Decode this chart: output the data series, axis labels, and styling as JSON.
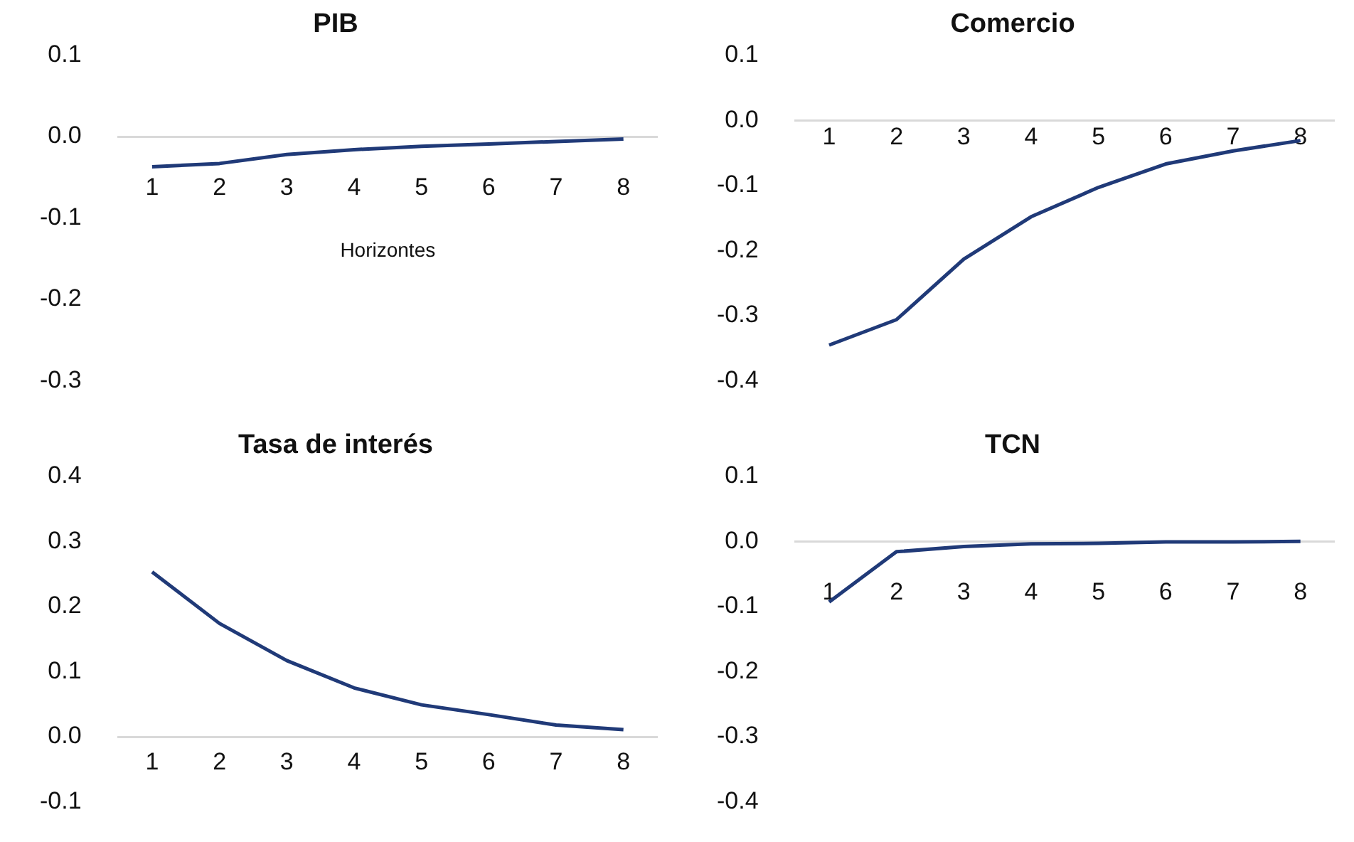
{
  "chart_data": [
    {
      "type": "line",
      "title": "PIB",
      "xlabel": "Horizontes",
      "categories": [
        "1",
        "2",
        "3",
        "4",
        "5",
        "6",
        "7",
        "8"
      ],
      "series": [
        {
          "color": "#203a78",
          "values": [
            -0.037,
            -0.033,
            -0.022,
            -0.016,
            -0.012,
            -0.009,
            -0.006,
            -0.003
          ]
        }
      ],
      "ylim": [
        -0.3,
        0.1
      ],
      "yticks": [
        {
          "value": -0.3,
          "label": "-0.3"
        },
        {
          "value": -0.2,
          "label": "-0.2"
        },
        {
          "value": -0.1,
          "label": "-0.1"
        },
        {
          "value": 0,
          "label": "0.0"
        },
        {
          "value": 0.1,
          "label": "0.1"
        }
      ]
    },
    {
      "type": "line",
      "title": "Comercio",
      "categories": [
        "1",
        "2",
        "3",
        "4",
        "5",
        "6",
        "7",
        "8"
      ],
      "series": [
        {
          "color": "#203a78",
          "values": [
            -0.345,
            -0.306,
            -0.213,
            -0.148,
            -0.103,
            -0.067,
            -0.047,
            -0.031
          ]
        }
      ],
      "ylim": [
        -0.4,
        0.1
      ],
      "yticks": [
        {
          "value": -0.4,
          "label": "-0.4"
        },
        {
          "value": -0.3,
          "label": "-0.3"
        },
        {
          "value": -0.2,
          "label": "-0.2"
        },
        {
          "value": -0.1,
          "label": "-0.1"
        },
        {
          "value": 0,
          "label": "0.0"
        },
        {
          "value": 0.1,
          "label": "0.1"
        }
      ]
    },
    {
      "type": "line",
      "title": "Tasa de interés",
      "categories": [
        "1",
        "2",
        "3",
        "4",
        "5",
        "6",
        "7",
        "8"
      ],
      "series": [
        {
          "color": "#203a78",
          "values": [
            0.253,
            0.174,
            0.117,
            0.075,
            0.049,
            0.034,
            0.018,
            0.011
          ]
        }
      ],
      "ylim": [
        -0.1,
        0.4
      ],
      "yticks": [
        {
          "value": -0.1,
          "label": "-0.1"
        },
        {
          "value": 0,
          "label": "0.0"
        },
        {
          "value": 0.1,
          "label": "0.1"
        },
        {
          "value": 0.2,
          "label": "0.2"
        },
        {
          "value": 0.3,
          "label": "0.3"
        },
        {
          "value": 0.4,
          "label": "0.4"
        }
      ]
    },
    {
      "type": "line",
      "title": "TCN",
      "categories": [
        "1",
        "2",
        "3",
        "4",
        "5",
        "6",
        "7",
        "8"
      ],
      "series": [
        {
          "color": "#203a78",
          "values": [
            -0.093,
            -0.016,
            -0.008,
            -0.004,
            -0.003,
            -0.001,
            -0.001,
            0
          ]
        }
      ],
      "ylim": [
        -0.4,
        0.1
      ],
      "yticks": [
        {
          "value": -0.4,
          "label": "-0.4"
        },
        {
          "value": -0.3,
          "label": "-0.3"
        },
        {
          "value": -0.2,
          "label": "-0.2"
        },
        {
          "value": -0.1,
          "label": "-0.1"
        },
        {
          "value": 0,
          "label": "0.0"
        },
        {
          "value": 0.1,
          "label": "0.1"
        }
      ]
    }
  ]
}
